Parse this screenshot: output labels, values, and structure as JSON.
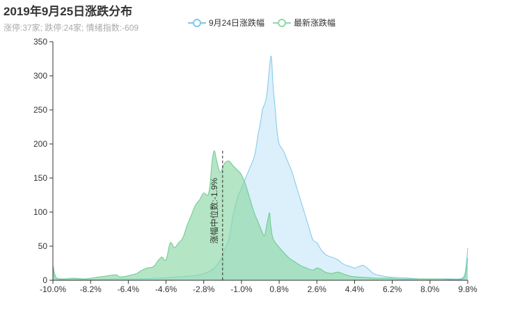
{
  "header": {
    "title": "2019年9月25日涨跌分布",
    "subtitle": "涨停:37家; 跌停:24家; 情绪指数:-609"
  },
  "legend": {
    "items": [
      {
        "label": "9月24日涨跌幅",
        "color": "#7ec8e8"
      },
      {
        "label": "最新涨跌幅",
        "color": "#8ed8a8"
      }
    ]
  },
  "annotation": {
    "label": "涨幅中位数:-1.9%",
    "x": -1.9
  },
  "chart_data": {
    "type": "area",
    "title": "2019年9月25日涨跌分布",
    "xlabel": "",
    "ylabel": "",
    "xlim": [
      -10.0,
      9.8
    ],
    "ylim": [
      0,
      350
    ],
    "x_tick_labels": [
      "-10.0%",
      "-8.2%",
      "-6.4%",
      "-4.6%",
      "-2.8%",
      "-1.0%",
      "0.8%",
      "2.6%",
      "4.4%",
      "6.2%",
      "8.0%",
      "9.8%"
    ],
    "x_ticks": [
      -10.0,
      -8.2,
      -6.4,
      -4.6,
      -2.8,
      -1.0,
      0.8,
      2.6,
      4.4,
      6.2,
      8.0,
      9.8
    ],
    "y_ticks": [
      0,
      50,
      100,
      150,
      200,
      250,
      300,
      350
    ],
    "series": [
      {
        "name": "9月24日涨跌幅",
        "color": "#7ec8e8",
        "fill": "rgba(190,228,245,0.55)",
        "points": [
          [
            -10.0,
            20
          ],
          [
            -9.9,
            3
          ],
          [
            -9.6,
            1
          ],
          [
            -9.0,
            1
          ],
          [
            -8.0,
            1
          ],
          [
            -7.0,
            2
          ],
          [
            -6.0,
            2
          ],
          [
            -5.0,
            3
          ],
          [
            -4.0,
            5
          ],
          [
            -3.5,
            6
          ],
          [
            -3.0,
            8
          ],
          [
            -2.6,
            12
          ],
          [
            -2.3,
            18
          ],
          [
            -2.0,
            30
          ],
          [
            -1.8,
            45
          ],
          [
            -1.6,
            60
          ],
          [
            -1.4,
            95
          ],
          [
            -1.2,
            120
          ],
          [
            -1.0,
            135
          ],
          [
            -0.8,
            150
          ],
          [
            -0.6,
            165
          ],
          [
            -0.4,
            180
          ],
          [
            -0.3,
            195
          ],
          [
            -0.2,
            215
          ],
          [
            -0.1,
            230
          ],
          [
            0.0,
            250
          ],
          [
            0.1,
            258
          ],
          [
            0.2,
            270
          ],
          [
            0.3,
            300
          ],
          [
            0.4,
            328
          ],
          [
            0.45,
            320
          ],
          [
            0.5,
            290
          ],
          [
            0.6,
            255
          ],
          [
            0.7,
            220
          ],
          [
            0.8,
            200
          ],
          [
            1.0,
            190
          ],
          [
            1.2,
            175
          ],
          [
            1.4,
            160
          ],
          [
            1.6,
            140
          ],
          [
            1.8,
            120
          ],
          [
            2.0,
            100
          ],
          [
            2.2,
            80
          ],
          [
            2.4,
            60
          ],
          [
            2.6,
            55
          ],
          [
            2.8,
            45
          ],
          [
            3.0,
            38
          ],
          [
            3.2,
            35
          ],
          [
            3.4,
            33
          ],
          [
            3.6,
            30
          ],
          [
            3.8,
            25
          ],
          [
            4.0,
            22
          ],
          [
            4.2,
            20
          ],
          [
            4.4,
            18
          ],
          [
            4.6,
            20
          ],
          [
            4.8,
            22
          ],
          [
            5.0,
            18
          ],
          [
            5.3,
            10
          ],
          [
            5.6,
            7
          ],
          [
            6.0,
            5
          ],
          [
            6.5,
            4
          ],
          [
            7.0,
            3
          ],
          [
            7.5,
            2
          ],
          [
            8.0,
            2
          ],
          [
            8.5,
            2
          ],
          [
            9.0,
            2
          ],
          [
            9.4,
            2
          ],
          [
            9.6,
            5
          ],
          [
            9.7,
            15
          ],
          [
            9.8,
            47
          ]
        ]
      },
      {
        "name": "最新涨跌幅",
        "color": "#6cc890",
        "fill": "rgba(140,215,165,0.65)",
        "points": [
          [
            -10.0,
            22
          ],
          [
            -9.9,
            8
          ],
          [
            -9.8,
            3
          ],
          [
            -9.5,
            2
          ],
          [
            -9.0,
            3
          ],
          [
            -8.5,
            2
          ],
          [
            -8.0,
            4
          ],
          [
            -7.5,
            6
          ],
          [
            -7.0,
            8
          ],
          [
            -6.8,
            5
          ],
          [
            -6.5,
            6
          ],
          [
            -6.0,
            10
          ],
          [
            -5.8,
            14
          ],
          [
            -5.5,
            18
          ],
          [
            -5.2,
            20
          ],
          [
            -5.0,
            28
          ],
          [
            -4.8,
            34
          ],
          [
            -4.6,
            30
          ],
          [
            -4.4,
            55
          ],
          [
            -4.2,
            48
          ],
          [
            -4.0,
            55
          ],
          [
            -3.8,
            62
          ],
          [
            -3.6,
            80
          ],
          [
            -3.4,
            95
          ],
          [
            -3.2,
            110
          ],
          [
            -3.0,
            118
          ],
          [
            -2.8,
            128
          ],
          [
            -2.6,
            125
          ],
          [
            -2.5,
            140
          ],
          [
            -2.4,
            175
          ],
          [
            -2.3,
            190
          ],
          [
            -2.2,
            178
          ],
          [
            -2.1,
            165
          ],
          [
            -2.0,
            158
          ],
          [
            -1.9,
            165
          ],
          [
            -1.8,
            172
          ],
          [
            -1.6,
            175
          ],
          [
            -1.4,
            168
          ],
          [
            -1.2,
            162
          ],
          [
            -1.0,
            155
          ],
          [
            -0.8,
            140
          ],
          [
            -0.6,
            120
          ],
          [
            -0.4,
            100
          ],
          [
            -0.2,
            85
          ],
          [
            0.0,
            70
          ],
          [
            0.1,
            65
          ],
          [
            0.2,
            80
          ],
          [
            0.3,
            95
          ],
          [
            0.35,
            98
          ],
          [
            0.4,
            80
          ],
          [
            0.5,
            62
          ],
          [
            0.7,
            52
          ],
          [
            0.9,
            45
          ],
          [
            1.1,
            38
          ],
          [
            1.3,
            32
          ],
          [
            1.5,
            28
          ],
          [
            1.8,
            22
          ],
          [
            2.1,
            18
          ],
          [
            2.4,
            15
          ],
          [
            2.6,
            18
          ],
          [
            2.8,
            16
          ],
          [
            3.0,
            12
          ],
          [
            3.3,
            10
          ],
          [
            3.6,
            12
          ],
          [
            3.9,
            9
          ],
          [
            4.2,
            6
          ],
          [
            4.5,
            5
          ],
          [
            5.0,
            4
          ],
          [
            5.5,
            3
          ],
          [
            6.0,
            3
          ],
          [
            6.5,
            2
          ],
          [
            7.0,
            2
          ],
          [
            7.5,
            2
          ],
          [
            8.0,
            2
          ],
          [
            8.5,
            2
          ],
          [
            9.0,
            1
          ],
          [
            9.4,
            1
          ],
          [
            9.6,
            3
          ],
          [
            9.7,
            10
          ],
          [
            9.8,
            33
          ]
        ]
      }
    ]
  }
}
